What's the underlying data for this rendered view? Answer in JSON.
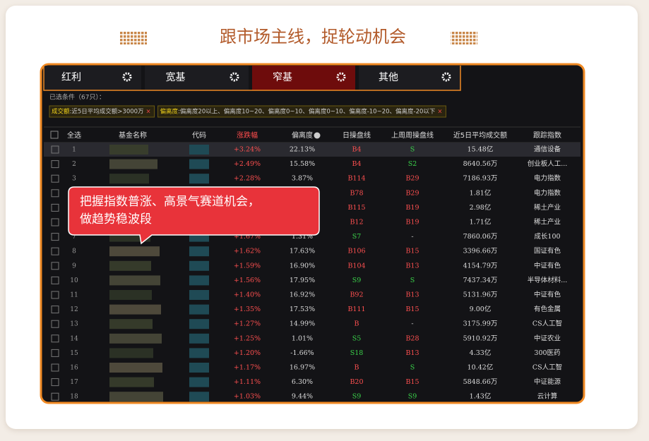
{
  "header": {
    "title": "跟市场主线，捉轮动机会"
  },
  "tabs": [
    "红利",
    "宽基",
    "窄基",
    "其他"
  ],
  "active_tab": 2,
  "selected_label": "已选条件（67只）：",
  "filters": [
    {
      "key": "成交额",
      "text": ":近5日平均成交额>3000万",
      "close": "×"
    },
    {
      "key": "偏离度",
      "text": ":偏离度20以上、偏离度10~20、偏离度0~10、偏离度0~10、偏离度-10~20、偏离度-20以下",
      "close": "×"
    }
  ],
  "table": {
    "columns": [
      "全选",
      "基金名称",
      "代码",
      "涨跌幅",
      "偏离度",
      "日操盘线",
      "上周周操盘线",
      "近5日平均成交额",
      "跟踪指数"
    ],
    "rows": [
      [
        "1",
        "+3.24%",
        "22.13%",
        "B4",
        "S",
        "15.48亿",
        "通信设备"
      ],
      [
        "2",
        "+2.49%",
        "15.58%",
        "B4",
        "S2",
        "8640.56万",
        "创业板人工..."
      ],
      [
        "3",
        "+2.28%",
        "3.87%",
        "B114",
        "B29",
        "7186.93万",
        "电力指数"
      ],
      [
        "4",
        null,
        null,
        "B78",
        "B29",
        "1.81亿",
        "电力指数"
      ],
      [
        "5",
        null,
        null,
        "B115",
        "B19",
        "2.98亿",
        "稀土产业"
      ],
      [
        "6",
        null,
        null,
        "B12",
        "B19",
        "1.71亿",
        "稀土产业"
      ],
      [
        "7",
        "+1.67%",
        "1.31%",
        "S7",
        "-",
        "7860.06万",
        "成长100"
      ],
      [
        "8",
        "+1.62%",
        "17.63%",
        "B106",
        "B15",
        "3396.66万",
        "国证有色"
      ],
      [
        "9",
        "+1.59%",
        "16.90%",
        "B104",
        "B13",
        "4154.79万",
        "中证有色"
      ],
      [
        "10",
        "+1.56%",
        "17.95%",
        "S9",
        "S",
        "7437.34万",
        "半导体材料..."
      ],
      [
        "11",
        "+1.40%",
        "16.92%",
        "B92",
        "B13",
        "5131.96万",
        "中证有色"
      ],
      [
        "12",
        "+1.35%",
        "17.53%",
        "B111",
        "B15",
        "9.00亿",
        "有色金属"
      ],
      [
        "13",
        "+1.27%",
        "14.99%",
        "B",
        "-",
        "3175.99万",
        "CS人工智"
      ],
      [
        "14",
        "+1.25%",
        "1.01%",
        "S5",
        "B28",
        "5910.92万",
        "中证农业"
      ],
      [
        "15",
        "+1.20%",
        "-1.66%",
        "S18",
        "B13",
        "4.33亿",
        "300医药"
      ],
      [
        "16",
        "+1.17%",
        "16.97%",
        "B",
        "S",
        "10.42亿",
        "CS人工智"
      ],
      [
        "17",
        "+1.11%",
        "6.30%",
        "B20",
        "B15",
        "5848.66万",
        "中证能源"
      ],
      [
        "18",
        "+1.03%",
        "9.44%",
        "S9",
        "S9",
        "1.43亿",
        "云计算"
      ]
    ]
  },
  "callout": {
    "lines": [
      "把握指数普涨、高景气赛道机会，",
      "做趋势稳波段"
    ]
  }
}
